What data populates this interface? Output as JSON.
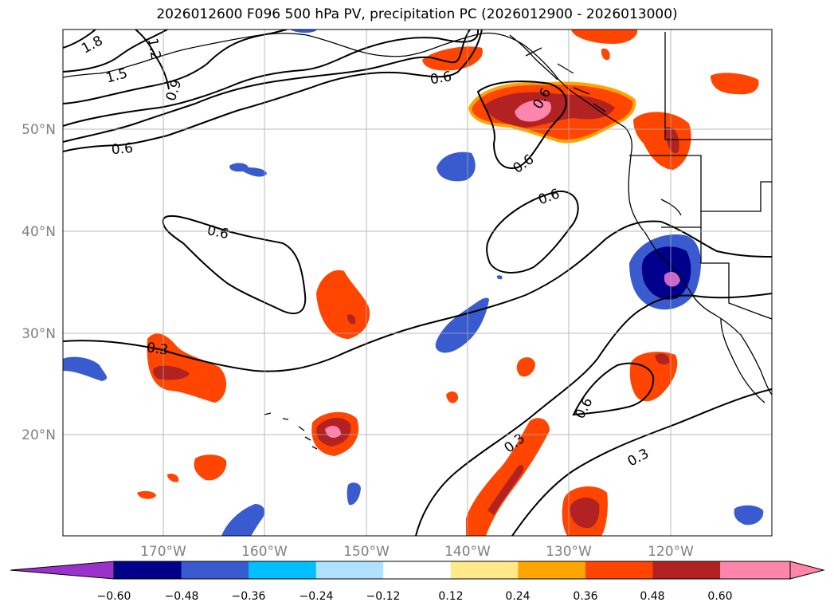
{
  "title": "2026012600 F096 500 hPa PV, precipitation PC (2026012900 - 2026013000)",
  "lat_labels": [
    "50°N",
    "40°N",
    "30°N",
    "20°N"
  ],
  "lon_labels": [
    "170°W",
    "160°W",
    "150°W",
    "140°W",
    "130°W",
    "120°W"
  ],
  "contour_labels": [
    "1.8",
    "1.5",
    "1.2",
    "0.9",
    "0.6",
    "0.6",
    "0.6",
    "0.6",
    "0.6",
    "0.6",
    "0.6",
    "0.3",
    "0.3",
    "0.3",
    "0.3"
  ],
  "colorbar": {
    "ticks": [
      "−0.60",
      "−0.48",
      "−0.36",
      "−0.24",
      "−0.12",
      "0.12",
      "0.24",
      "0.36",
      "0.48",
      "0.60"
    ],
    "colors": [
      "#9932cc",
      "#00008b",
      "#3a5bcf",
      "#00bfff",
      "#b0e2ff",
      "#ffffff",
      "#ffe98a",
      "#ffa500",
      "#ff4500",
      "#b22222",
      "#ff85ad",
      "#ff85ad"
    ]
  },
  "palette": {
    "neg_strong": "#00008b",
    "neg_mid": "#3a5bcf",
    "neg_light": "#00bfff",
    "neg_violet": "#9932cc",
    "neg_pink": "#ee82ee",
    "pos_yellow": "#ffe98a",
    "pos_orange": "#ffa500",
    "pos_red": "#ff4500",
    "pos_dark": "#b22222",
    "pos_pink": "#ff85ad"
  }
}
